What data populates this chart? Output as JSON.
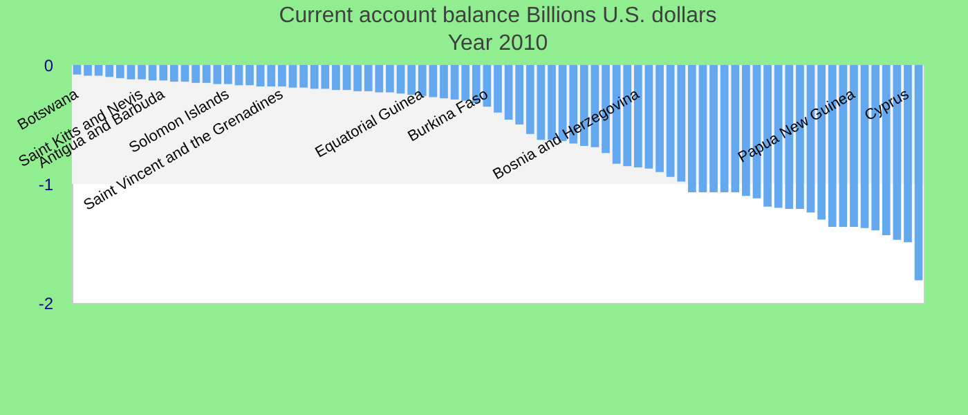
{
  "chart_data": {
    "type": "bar",
    "title": "Current account balance Billions U.S. dollars",
    "subtitle": "Year 2010",
    "categories": [
      "Botswana",
      null,
      null,
      null,
      null,
      null,
      "Saint Kitts and Nevis",
      null,
      "Antigua and Barbuda",
      null,
      null,
      null,
      null,
      null,
      "Solomon Islands",
      null,
      null,
      null,
      null,
      "Saint Vincent and the Grenadines",
      null,
      null,
      null,
      null,
      null,
      null,
      null,
      null,
      null,
      null,
      null,
      null,
      "Equatorial Guinea",
      null,
      null,
      null,
      null,
      null,
      "Burkina Faso",
      null,
      null,
      null,
      null,
      null,
      null,
      null,
      null,
      null,
      null,
      null,
      null,
      null,
      "Bosnia and Herzegovina",
      null,
      null,
      null,
      null,
      null,
      null,
      null,
      null,
      null,
      null,
      null,
      null,
      null,
      null,
      null,
      null,
      null,
      null,
      null,
      "Papua New Guinea",
      null,
      null,
      null,
      null,
      "Cyprus",
      null
    ],
    "values": [
      -0.08,
      -0.09,
      -0.09,
      -0.1,
      -0.11,
      -0.12,
      -0.12,
      -0.13,
      -0.13,
      -0.14,
      -0.14,
      -0.15,
      -0.15,
      -0.16,
      -0.16,
      -0.17,
      -0.17,
      -0.18,
      -0.18,
      -0.18,
      -0.19,
      -0.19,
      -0.2,
      -0.2,
      -0.21,
      -0.21,
      -0.22,
      -0.22,
      -0.23,
      -0.23,
      -0.24,
      -0.25,
      -0.26,
      -0.27,
      -0.28,
      -0.29,
      -0.3,
      -0.32,
      -0.35,
      -0.4,
      -0.46,
      -0.5,
      -0.58,
      -0.63,
      -0.63,
      -0.64,
      -0.66,
      -0.68,
      -0.69,
      -0.74,
      -0.83,
      -0.85,
      -0.86,
      -0.87,
      -0.9,
      -0.94,
      -0.98,
      -1.07,
      -1.07,
      -1.07,
      -1.07,
      -1.07,
      -1.1,
      -1.12,
      -1.19,
      -1.2,
      -1.21,
      -1.21,
      -1.24,
      -1.3,
      -1.36,
      -1.36,
      -1.36,
      -1.37,
      -1.39,
      -1.43,
      -1.47,
      -1.49,
      -1.81
    ],
    "color": "#64a8f0",
    "ylim": [
      -2,
      0
    ],
    "yticks": [
      -2,
      -1,
      0
    ],
    "bands": [
      {
        "axis": "y",
        "from": 0,
        "to": -1,
        "color": "#f3f3f3"
      }
    ]
  }
}
